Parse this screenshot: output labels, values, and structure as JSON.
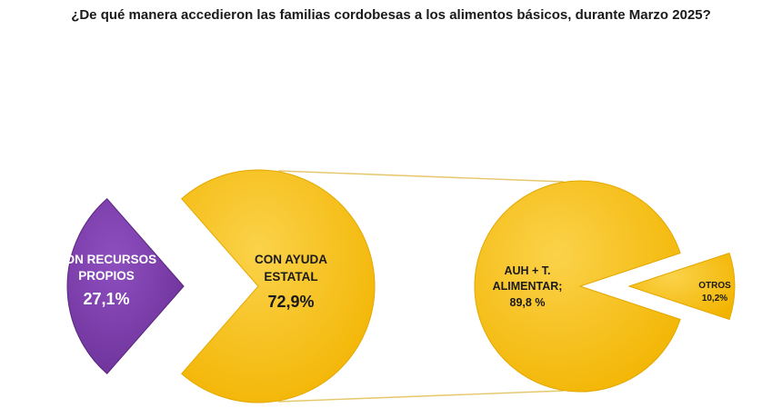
{
  "title": "¿De qué manera accedieron las familias cordobesas a los alimentos básicos, durante Marzo 2025?",
  "colors": {
    "purple": "#7b3fa8",
    "yellow": "#f5bd0d",
    "stroke": "#c89a00",
    "white_label": "#ffffff",
    "dark_label": "#1a1a1a"
  },
  "chart_data": {
    "type": "pie",
    "title": "¿De qué manera accedieron las familias cordobesas a los alimentos básicos, durante Marzo 2025?",
    "subtype": "pie-of-pie",
    "main_pie": {
      "slices": [
        {
          "label_lines": [
            "CON RECURSOS",
            "PROPIOS"
          ],
          "value_label": "27,1%",
          "value": 27.1,
          "color": "#7b3fa8"
        },
        {
          "label_lines": [
            "CON  AYUDA",
            "ESTATAL"
          ],
          "value_label": "72,9%",
          "value": 72.9,
          "color": "#f5bd0d"
        }
      ]
    },
    "secondary_pie": {
      "breakdown_of": "CON  AYUDA ESTATAL",
      "slices": [
        {
          "label_lines": [
            "AUH + T.",
            "ALIMENTAR;"
          ],
          "value_label": "89,8 %",
          "value": 89.8,
          "color": "#f5bd0d"
        },
        {
          "label_lines": [
            "OTROS"
          ],
          "value_label": "10,2%",
          "value": 10.2,
          "color": "#f5bd0d"
        }
      ]
    }
  }
}
